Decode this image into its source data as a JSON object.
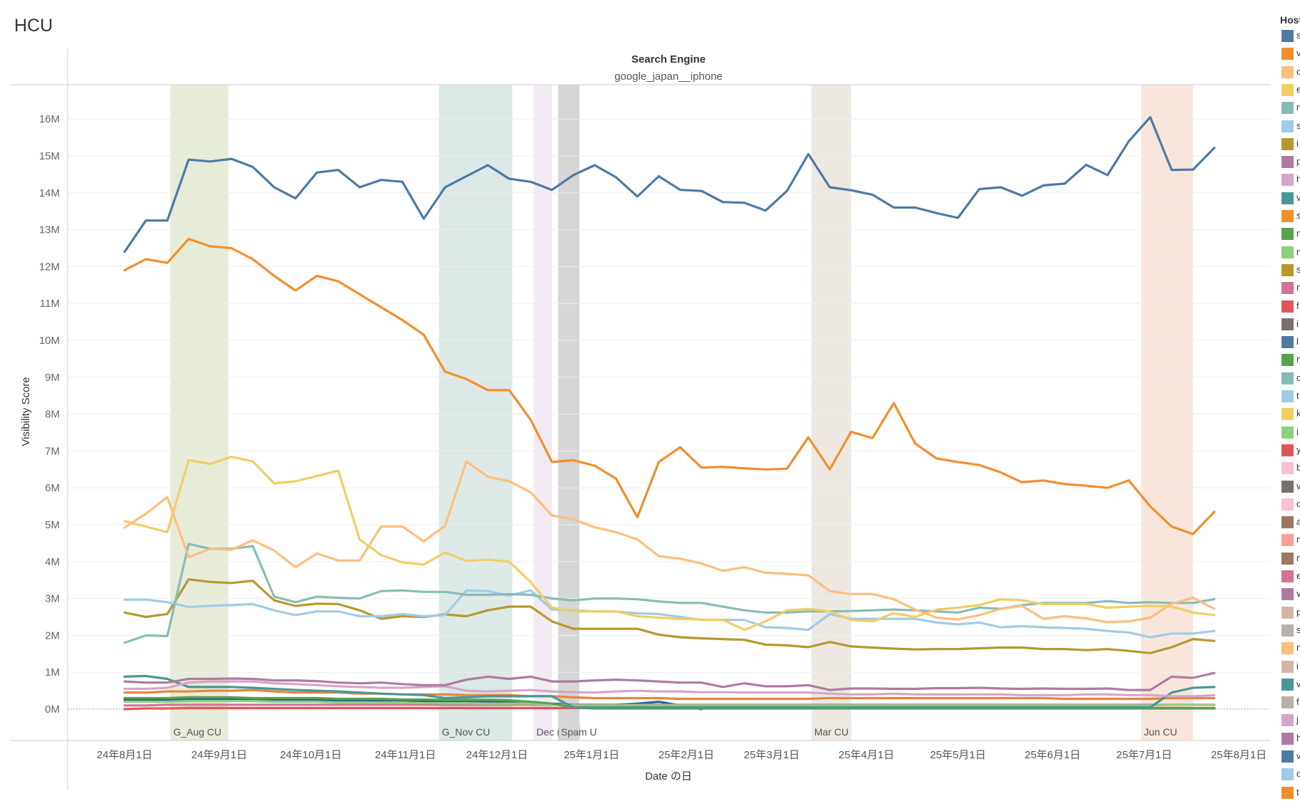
{
  "page": {
    "title": "HCU"
  },
  "chart_data": {
    "type": "line",
    "facet_header": "Search Engine",
    "facet_value": "google_japan__iphone",
    "xlabel": "Date の日",
    "ylabel": "Visibility Score",
    "ylim": [
      -1,
      17.5
    ],
    "y_ticks": [
      0,
      1,
      2,
      3,
      4,
      5,
      6,
      7,
      8,
      9,
      10,
      11,
      12,
      13,
      14,
      15,
      16
    ],
    "y_tick_labels": [
      "0M",
      "1M",
      "2M",
      "3M",
      "4M",
      "5M",
      "6M",
      "7M",
      "8M",
      "9M",
      "10M",
      "11M",
      "12M",
      "13M",
      "14M",
      "15M",
      "16M"
    ],
    "x_ticks": [
      "2024-08-01",
      "2024-09-01",
      "2024-10-01",
      "2024-11-01",
      "2024-12-01",
      "2025-01-01",
      "2025-02-01",
      "2025-03-01",
      "2025-04-01",
      "2025-05-01",
      "2025-06-01",
      "2025-07-01",
      "2025-08-01"
    ],
    "x_tick_labels": [
      "24年8月1日",
      "24年9月1日",
      "24年10月1日",
      "24年11月1日",
      "24年12月1日",
      "25年1月1日",
      "25年2月1日",
      "25年3月1日",
      "25年4月1日",
      "25年5月1日",
      "25年6月1日",
      "25年7月1日",
      "25年8月1日"
    ],
    "x": [
      "2024-08-01",
      "2024-08-08",
      "2024-08-15",
      "2024-08-22",
      "2024-08-29",
      "2024-09-05",
      "2024-09-12",
      "2024-09-19",
      "2024-09-26",
      "2024-10-03",
      "2024-10-10",
      "2024-10-17",
      "2024-10-24",
      "2024-10-31",
      "2024-11-07",
      "2024-11-14",
      "2024-11-21",
      "2024-11-28",
      "2024-12-05",
      "2024-12-12",
      "2024-12-19",
      "2024-12-26",
      "2025-01-02",
      "2025-01-09",
      "2025-01-16",
      "2025-01-23",
      "2025-01-30",
      "2025-02-06",
      "2025-02-13",
      "2025-02-20",
      "2025-02-27",
      "2025-03-06",
      "2025-03-13",
      "2025-03-20",
      "2025-03-27",
      "2025-04-03",
      "2025-04-10",
      "2025-04-17",
      "2025-04-24",
      "2025-05-01",
      "2025-05-08",
      "2025-05-15",
      "2025-05-22",
      "2025-05-29",
      "2025-06-05",
      "2025-06-12",
      "2025-06-19",
      "2025-06-26",
      "2025-07-03",
      "2025-07-10",
      "2025-07-17",
      "2025-07-24"
    ],
    "update_bands": [
      {
        "label": "G_Aug CU",
        "start": "2024-08-16",
        "end": "2024-09-04",
        "color": "#e7ecd9"
      },
      {
        "label": "G_Nov CU",
        "start": "2024-11-12",
        "end": "2024-12-06",
        "color": "#dde9e6"
      },
      {
        "label": "Dec (",
        "start": "2024-12-13",
        "end": "2024-12-19",
        "color": "#f2ebf3"
      },
      {
        "label": "Spam U",
        "start": "2024-12-21",
        "end": "2024-12-28",
        "color": "#d6d6d6"
      },
      {
        "label": "Mar CU",
        "start": "2025-03-14",
        "end": "2025-03-27",
        "color": "#eee8e3"
      },
      {
        "label": "Jun CU",
        "start": "2025-06-30",
        "end": "2025-07-17",
        "color": "#f8e6dc"
      }
    ],
    "series": [
      {
        "color": "#4e79a7",
        "values": [
          12.4,
          13.25,
          13.25,
          14.9,
          14.85,
          14.92,
          14.7,
          14.15,
          13.85,
          14.55,
          14.62,
          14.15,
          14.35,
          14.3,
          13.3,
          14.15,
          14.45,
          14.75,
          14.38,
          14.3,
          14.08,
          14.48,
          14.75,
          14.42,
          13.9,
          14.45,
          14.08,
          14.05,
          13.75,
          13.73,
          13.52,
          14.05,
          15.05,
          14.15,
          14.07,
          13.95,
          13.6,
          13.6,
          13.45,
          13.32,
          14.1,
          14.15,
          13.92,
          14.2,
          14.25,
          14.76,
          14.48,
          15.4,
          16.05,
          14.62,
          14.63,
          15.22
        ]
      },
      {
        "color": "#f28e2b",
        "values": [
          11.9,
          12.2,
          12.1,
          12.75,
          12.55,
          12.5,
          12.2,
          11.75,
          11.35,
          11.75,
          11.6,
          11.25,
          10.9,
          10.55,
          10.15,
          9.15,
          8.95,
          8.65,
          8.65,
          7.85,
          6.7,
          6.75,
          6.6,
          6.25,
          5.2,
          6.7,
          7.1,
          6.55,
          6.57,
          6.53,
          6.5,
          6.52,
          7.37,
          6.5,
          7.52,
          7.35,
          8.3,
          7.2,
          6.8,
          6.7,
          6.62,
          6.42,
          6.15,
          6.2,
          6.1,
          6.06,
          6.0,
          6.2,
          5.5,
          4.95,
          4.75,
          5.35
        ]
      },
      {
        "color": "#ffbe7d",
        "values": [
          4.92,
          5.3,
          5.75,
          4.12,
          4.35,
          4.32,
          4.58,
          4.3,
          3.85,
          4.22,
          4.03,
          4.03,
          4.95,
          4.95,
          4.55,
          4.97,
          6.72,
          6.3,
          6.18,
          5.88,
          5.25,
          5.15,
          4.93,
          4.8,
          4.6,
          4.15,
          4.08,
          3.95,
          3.75,
          3.85,
          3.7,
          3.67,
          3.63,
          3.2,
          3.12,
          3.12,
          2.98,
          2.7,
          2.48,
          2.43,
          2.55,
          2.72,
          2.8,
          2.45,
          2.52,
          2.46,
          2.36,
          2.38,
          2.48,
          2.86,
          3.02,
          2.72
        ]
      },
      {
        "color": "#f1ce63",
        "values": [
          5.1,
          4.95,
          4.8,
          6.75,
          6.65,
          6.84,
          6.72,
          6.12,
          6.18,
          6.32,
          6.47,
          4.6,
          4.18,
          3.98,
          3.92,
          4.25,
          4.02,
          4.05,
          4.0,
          3.45,
          2.75,
          2.65,
          2.65,
          2.65,
          2.52,
          2.48,
          2.45,
          2.43,
          2.42,
          2.15,
          2.38,
          2.68,
          2.72,
          2.65,
          2.42,
          2.38,
          2.6,
          2.5,
          2.7,
          2.75,
          2.82,
          2.98,
          2.95,
          2.85,
          2.85,
          2.85,
          2.75,
          2.78,
          2.8,
          2.78,
          2.62,
          2.55
        ]
      },
      {
        "color": "#86bcb6",
        "values": [
          1.8,
          2.0,
          1.98,
          4.48,
          4.35,
          4.35,
          4.42,
          3.05,
          2.9,
          3.05,
          3.02,
          3.0,
          3.2,
          3.22,
          3.18,
          3.18,
          3.1,
          3.1,
          3.12,
          3.1,
          3.0,
          2.95,
          3.0,
          3.0,
          2.98,
          2.92,
          2.88,
          2.88,
          2.78,
          2.68,
          2.62,
          2.62,
          2.65,
          2.65,
          2.66,
          2.68,
          2.7,
          2.68,
          2.65,
          2.62,
          2.75,
          2.72,
          2.82,
          2.88,
          2.88,
          2.88,
          2.93,
          2.88,
          2.9,
          2.88,
          2.88,
          2.98
        ]
      },
      {
        "color": "#a0cbe8",
        "values": [
          2.97,
          2.97,
          2.9,
          2.77,
          2.8,
          2.82,
          2.85,
          2.68,
          2.55,
          2.65,
          2.65,
          2.52,
          2.52,
          2.58,
          2.52,
          2.55,
          3.22,
          3.2,
          3.08,
          3.22,
          2.7,
          2.68,
          2.65,
          2.65,
          2.6,
          2.58,
          2.5,
          2.42,
          2.42,
          2.42,
          2.22,
          2.2,
          2.15,
          2.58,
          2.45,
          2.45,
          2.45,
          2.45,
          2.35,
          2.3,
          2.35,
          2.22,
          2.25,
          2.22,
          2.2,
          2.18,
          2.12,
          2.08,
          1.95,
          2.05,
          2.05,
          2.12
        ]
      },
      {
        "color": "#b6992d",
        "values": [
          2.62,
          2.5,
          2.58,
          3.52,
          3.45,
          3.42,
          3.48,
          2.95,
          2.8,
          2.86,
          2.85,
          2.68,
          2.45,
          2.52,
          2.5,
          2.57,
          2.52,
          2.68,
          2.78,
          2.78,
          2.38,
          2.18,
          2.18,
          2.18,
          2.18,
          2.02,
          1.95,
          1.92,
          1.9,
          1.88,
          1.75,
          1.73,
          1.68,
          1.82,
          1.7,
          1.67,
          1.64,
          1.62,
          1.63,
          1.63,
          1.65,
          1.67,
          1.67,
          1.63,
          1.63,
          1.6,
          1.63,
          1.58,
          1.52,
          1.68,
          1.9,
          1.85
        ]
      },
      {
        "color": "#b07aa1",
        "values": [
          0.75,
          0.72,
          0.72,
          0.82,
          0.82,
          0.83,
          0.82,
          0.78,
          0.78,
          0.76,
          0.72,
          0.7,
          0.72,
          0.68,
          0.65,
          0.65,
          0.8,
          0.88,
          0.82,
          0.88,
          0.75,
          0.75,
          0.78,
          0.8,
          0.78,
          0.75,
          0.72,
          0.72,
          0.6,
          0.7,
          0.62,
          0.62,
          0.65,
          0.52,
          0.56,
          0.56,
          0.55,
          0.55,
          0.57,
          0.57,
          0.58,
          0.56,
          0.55,
          0.56,
          0.55,
          0.55,
          0.56,
          0.52,
          0.52,
          0.88,
          0.85,
          0.98
        ]
      },
      {
        "color": "#d4a6c8",
        "values": [
          0.55,
          0.55,
          0.58,
          0.72,
          0.75,
          0.75,
          0.75,
          0.7,
          0.68,
          0.65,
          0.62,
          0.6,
          0.58,
          0.58,
          0.6,
          0.62,
          0.5,
          0.48,
          0.5,
          0.52,
          0.48,
          0.46,
          0.45,
          0.48,
          0.5,
          0.48,
          0.48,
          0.46,
          0.46,
          0.45,
          0.45,
          0.45,
          0.45,
          0.42,
          0.4,
          0.4,
          0.42,
          0.4,
          0.4,
          0.4,
          0.4,
          0.4,
          0.38,
          0.38,
          0.38,
          0.4,
          0.4,
          0.38,
          0.38,
          0.35,
          0.35,
          0.38
        ]
      },
      {
        "color": "#499894",
        "values": [
          0.88,
          0.9,
          0.82,
          0.6,
          0.6,
          0.6,
          0.58,
          0.55,
          0.52,
          0.5,
          0.48,
          0.45,
          0.42,
          0.4,
          0.38,
          0.3,
          0.32,
          0.35,
          0.35,
          0.35,
          0.35,
          0.05,
          0.05,
          0.05,
          0.05,
          0.05,
          0.05,
          0.05,
          0.05,
          0.05,
          0.05,
          0.05,
          0.05,
          0.05,
          0.05,
          0.05,
          0.05,
          0.05,
          0.05,
          0.05,
          0.05,
          0.05,
          0.05,
          0.05,
          0.05,
          0.05,
          0.05,
          0.05,
          0.05,
          0.45,
          0.58,
          0.6
        ]
      },
      {
        "color": "#e8853a",
        "values": [
          0.45,
          0.45,
          0.48,
          0.48,
          0.5,
          0.5,
          0.52,
          0.48,
          0.45,
          0.45,
          0.45,
          0.42,
          0.42,
          0.4,
          0.4,
          0.4,
          0.38,
          0.38,
          0.38,
          0.35,
          0.35,
          0.32,
          0.3,
          0.3,
          0.3,
          0.3,
          0.28,
          0.28,
          0.28,
          0.28,
          0.28,
          0.28,
          0.28,
          0.3,
          0.3,
          0.3,
          0.3,
          0.3,
          0.3,
          0.3,
          0.3,
          0.3,
          0.3,
          0.3,
          0.28,
          0.28,
          0.28,
          0.28,
          0.28,
          0.3,
          0.3,
          0.3
        ]
      },
      {
        "color": "#59a14f",
        "values": [
          0.3,
          0.3,
          0.3,
          0.32,
          0.32,
          0.32,
          0.3,
          0.3,
          0.3,
          0.3,
          0.28,
          0.28,
          0.28,
          0.26,
          0.26,
          0.25,
          0.25,
          0.25,
          0.24,
          0.2,
          0.15,
          0.05,
          0.02,
          0.02,
          0.02,
          0.02,
          0.02,
          0.02,
          0.02,
          0.02,
          0.02,
          0.02,
          0.02,
          0.02,
          0.02,
          0.02,
          0.02,
          0.02,
          0.02,
          0.02,
          0.02,
          0.02,
          0.02,
          0.02,
          0.02,
          0.02,
          0.02,
          0.02,
          0.02,
          0.02,
          0.02,
          0.02
        ]
      },
      {
        "color": "#8cd17d",
        "values": [
          0.2,
          0.2,
          0.2,
          0.22,
          0.22,
          0.22,
          0.22,
          0.2,
          0.2,
          0.2,
          0.18,
          0.18,
          0.18,
          0.18,
          0.16,
          0.16,
          0.16,
          0.15,
          0.15,
          0.15,
          0.12,
          0.1,
          0.1,
          0.1,
          0.1,
          0.1,
          0.1,
          0.1,
          0.1,
          0.1,
          0.1,
          0.1,
          0.1,
          0.1,
          0.1,
          0.1,
          0.1,
          0.1,
          0.1,
          0.1,
          0.1,
          0.1,
          0.1,
          0.1,
          0.1,
          0.1,
          0.1,
          0.1,
          0.1,
          0.12,
          0.12,
          0.12
        ]
      },
      {
        "color": "#d37295",
        "values": [
          0.1,
          0.1,
          0.12,
          0.12,
          0.12,
          0.12,
          0.12,
          0.12,
          0.12,
          0.12,
          0.12,
          0.12,
          0.12,
          0.12,
          0.12,
          0.12,
          0.12,
          0.12,
          0.12,
          0.12,
          0.12,
          0.12,
          0.12,
          0.12,
          0.12,
          0.12,
          0.12,
          0.12,
          0.12,
          0.12,
          0.12,
          0.12,
          0.12,
          0.12,
          0.12,
          0.12,
          0.12,
          0.12,
          0.12,
          0.12,
          0.12,
          0.12,
          0.12,
          0.12,
          0.12,
          0.12,
          0.12,
          0.12,
          0.12,
          0.12,
          0.12,
          0.12
        ]
      },
      {
        "color": "#e15759",
        "values": [
          0.0,
          0.02,
          0.02,
          0.03,
          0.03,
          0.03,
          0.03,
          0.03,
          0.03,
          0.03,
          0.03,
          0.03,
          0.03,
          0.03,
          0.03,
          0.03,
          0.03,
          0.03,
          0.03,
          0.03,
          0.03,
          0.03,
          0.03,
          0.03,
          0.03,
          0.03,
          0.03,
          0.03,
          0.03,
          0.03,
          0.03,
          0.03,
          0.03,
          0.03,
          0.03,
          0.03,
          0.03,
          0.03,
          0.03,
          0.03,
          0.03,
          0.03,
          0.03,
          0.03,
          0.03,
          0.03,
          0.03,
          0.03,
          0.03,
          0.03,
          0.03,
          0.03
        ]
      },
      {
        "color": "#2f5d9a",
        "values": [
          0.25,
          0.25,
          0.25,
          0.28,
          0.28,
          0.28,
          0.28,
          0.26,
          0.25,
          0.25,
          0.24,
          0.24,
          0.22,
          0.22,
          0.22,
          0.2,
          0.2,
          0.2,
          0.2,
          0.18,
          0.15,
          0.12,
          0.12,
          0.12,
          0.15,
          0.2,
          0.1,
          0.0,
          null,
          null,
          null,
          null,
          null,
          null,
          null,
          null,
          null,
          null,
          null,
          null,
          null,
          null,
          null,
          null,
          null,
          null,
          null,
          null,
          null,
          null,
          null,
          null
        ]
      }
    ]
  },
  "legend": {
    "title": "Host",
    "swatches": [
      "#4e79a7",
      "#f28e2b",
      "#ffbe7d",
      "#f1ce63",
      "#86bcb6",
      "#a0cbe8",
      "#b6992d",
      "#b07aa1",
      "#d4a6c8",
      "#499894",
      "#f28e2b",
      "#59a14f",
      "#8cd17d",
      "#b6992d",
      "#d37295",
      "#e15759",
      "#79706e",
      "#4e79a7",
      "#59a14f",
      "#86bcb6",
      "#a0cbe8",
      "#f1ce63",
      "#8cd17d",
      "#e15759",
      "#fabfd2",
      "#79706e",
      "#fabfd2",
      "#9d7660",
      "#ff9d9a",
      "#9d7660",
      "#d37295",
      "#b07aa1",
      "#d7b5a6",
      "#bab0ac",
      "#ffbe7d",
      "#d7b5a6",
      "#499894",
      "#bab0ac",
      "#d4a6c8",
      "#b07aa1",
      "#4e79a7",
      "#a0cbe8",
      "#f28e2b"
    ],
    "texts": [
      "s",
      "v",
      "c",
      "e",
      "n",
      "s",
      "i",
      "p",
      "h",
      "v",
      "s",
      "n",
      "n",
      "s",
      "n",
      "f",
      "i",
      "l",
      "n",
      "c",
      "t",
      "k",
      "i",
      "y",
      "b",
      "v",
      "c",
      "a",
      "n",
      "n",
      "e",
      "v",
      "p",
      "s",
      "n",
      "i",
      "v",
      "f",
      "j",
      "h",
      "v",
      "c",
      "t"
    ]
  }
}
